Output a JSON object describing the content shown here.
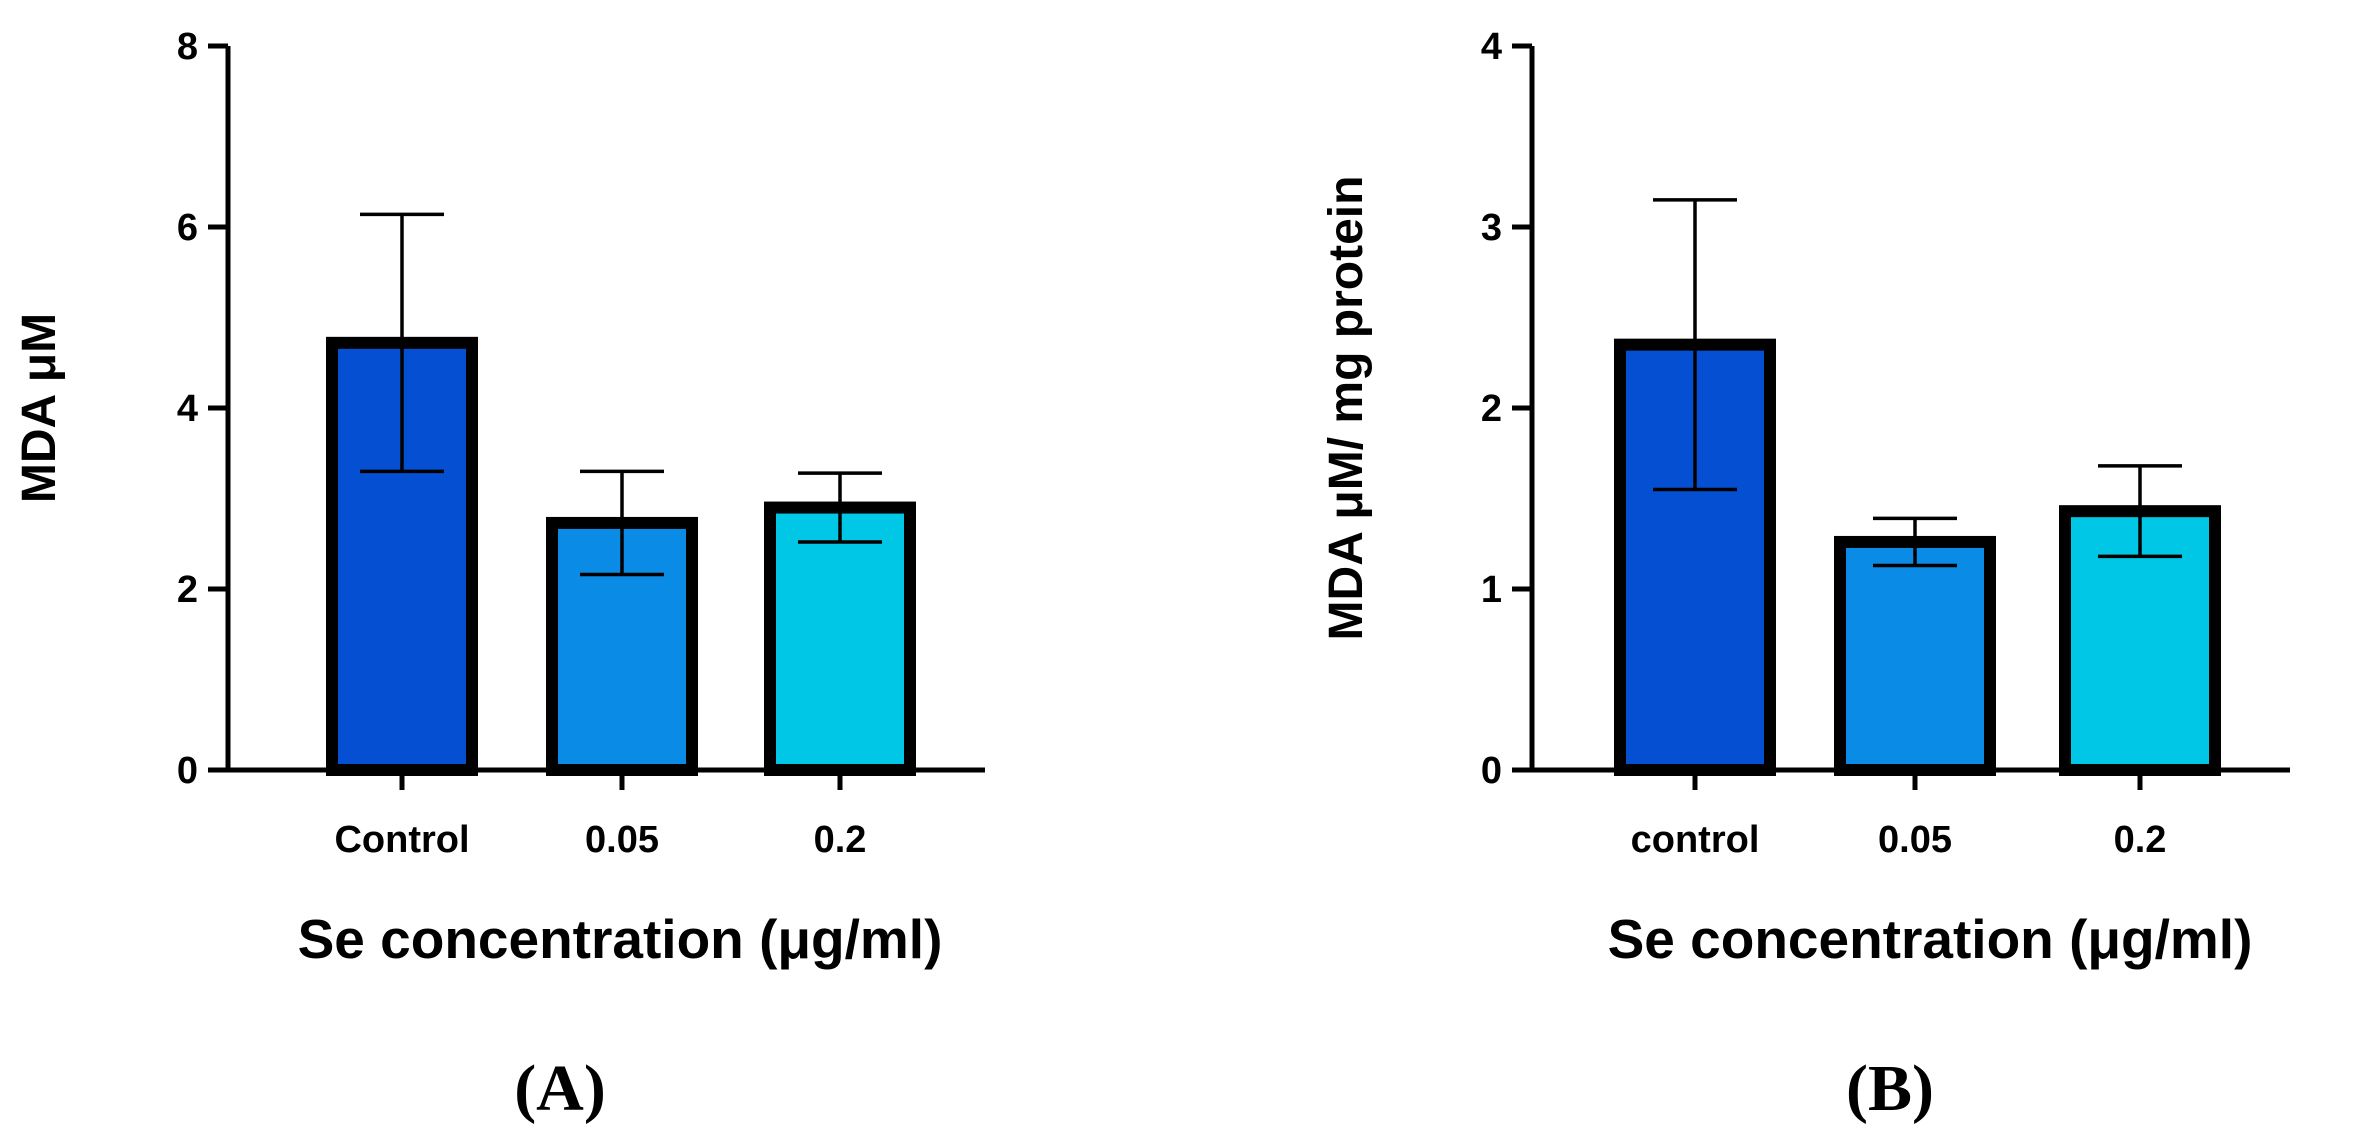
{
  "chart_data": [
    {
      "type": "bar",
      "panel_label": "(A)",
      "categories": [
        "Control",
        "0.05",
        "0.2"
      ],
      "values": [
        4.72,
        2.73,
        2.9
      ],
      "errors": [
        1.42,
        0.57,
        0.38
      ],
      "colors": [
        "#0550d2",
        "#0a8be6",
        "#00c7e6"
      ],
      "ylabel": "MDA μM",
      "xlabel": "Se concentration (μg/ml)",
      "ylim": [
        0,
        8
      ],
      "yticks": [
        0,
        2,
        4,
        6,
        8
      ],
      "ytick_labels": [
        "0",
        "2",
        "4",
        "6",
        "8"
      ],
      "grid": false
    },
    {
      "type": "bar",
      "panel_label": "(B)",
      "categories": [
        "control",
        "0.05",
        "0.2"
      ],
      "values": [
        2.35,
        1.26,
        1.43
      ],
      "errors": [
        0.8,
        0.13,
        0.25
      ],
      "colors": [
        "#0550d2",
        "#0a8be6",
        "#00c7e6"
      ],
      "ylabel": "MDA μM/ mg protein",
      "xlabel": "Se concentration (μg/ml)",
      "ylim": [
        0,
        4
      ],
      "yticks": [
        0,
        1,
        2,
        3,
        4
      ],
      "ytick_labels": [
        "0",
        "1",
        "2",
        "3",
        "4"
      ],
      "grid": false
    }
  ]
}
